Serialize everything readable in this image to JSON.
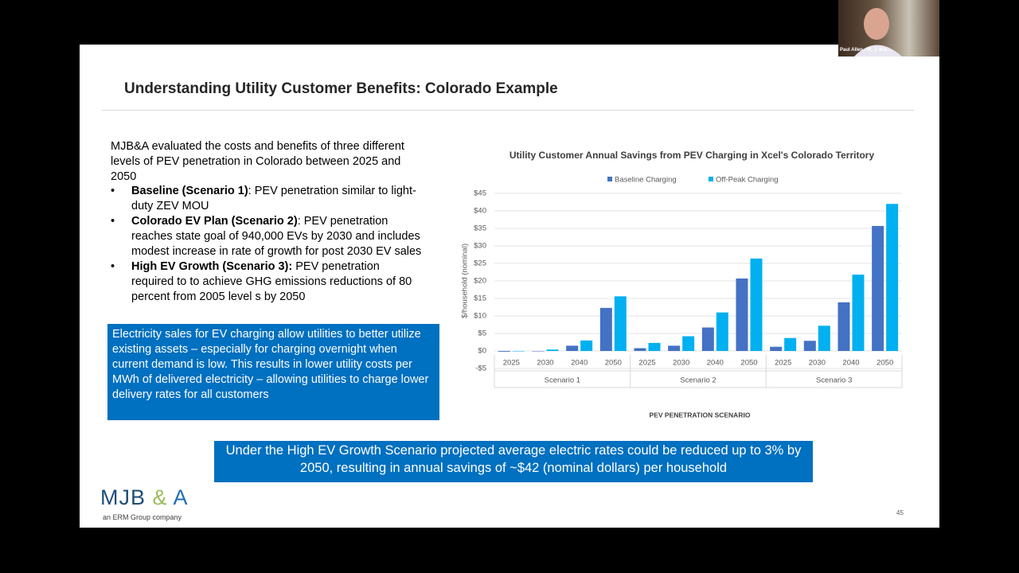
{
  "slide": {
    "title": "Understanding Utility Customer Benefits: Colorado Example",
    "intro": "MJB&A evaluated the costs and benefits of three different levels of PEV penetration in Colorado between 2025 and 2050",
    "bullets": [
      {
        "bold": "Baseline (Scenario 1)",
        "text": ": PEV penetration similar to light-duty ZEV MOU"
      },
      {
        "bold": "Colorado EV Plan (Scenario 2)",
        "text": ": PEV penetration reaches state goal of 940,000 EVs by 2030 and includes modest increase in rate of growth for post 2030 EV sales"
      },
      {
        "bold": "High EV Growth (Scenario 3):",
        "text": " PEV penetration required to to achieve GHG emissions reductions of 80 percent from 2005 level s by 2050"
      }
    ],
    "box_text": "Electricity sales for EV charging allow utilities to better utilize existing assets – especially for charging overnight when current demand is low.  This results in lower utility costs per MWh of delivered electricity – allowing utilities to charge lower delivery rates for all customers",
    "callout": "Under the High EV Growth Scenario projected average electric rates could be reduced up to 3% by 2050, resulting in annual savings of ~$42 (nominal dollars) per household",
    "logo": [
      "MJB",
      "&",
      "A"
    ],
    "tagline": "an ERM Group company",
    "page_number": "45",
    "video_name": "Paul Allen - M. J. Bra..."
  },
  "chart_data": {
    "type": "bar",
    "title": "Utility Customer Annual Savings from PEV Charging in Xcel's Colorado Territory",
    "y_label": "$/household (nominal)",
    "x_label": "PEV PENETRATION SCENARIO",
    "categories": [
      "2025",
      "2030",
      "2040",
      "2050",
      "2025",
      "2030",
      "2040",
      "2050",
      "2025",
      "2030",
      "2040",
      "2050"
    ],
    "groups": [
      "Scenario 1",
      "Scenario 2",
      "Scenario 3"
    ],
    "series": [
      {
        "name": "Baseline Charging",
        "color": "#4472c4",
        "values": [
          -0.2,
          0,
          1.5,
          12.3,
          0.8,
          1.5,
          6.7,
          20.7,
          1.2,
          2.9,
          13.9,
          35.7
        ]
      },
      {
        "name": "Off-Peak Charging",
        "color": "#00b0f0",
        "values": [
          0,
          0.4,
          3,
          15.6,
          2.3,
          4.2,
          11,
          26.4,
          3.7,
          7.2,
          21.8,
          42
        ]
      }
    ],
    "ylim": [
      -5,
      45
    ],
    "yticks": [
      {
        "value": -5,
        "label": "-$5"
      },
      {
        "value": 0,
        "label": "$0"
      },
      {
        "value": 5,
        "label": "$5"
      },
      {
        "value": 10,
        "label": "$10"
      },
      {
        "value": 15,
        "label": "$15"
      },
      {
        "value": 20,
        "label": "$20"
      },
      {
        "value": 25,
        "label": "$25"
      },
      {
        "value": 30,
        "label": "$30"
      },
      {
        "value": 35,
        "label": "$35"
      },
      {
        "value": 40,
        "label": "$40"
      },
      {
        "value": 45,
        "label": "$45"
      }
    ],
    "grid": true,
    "legend": "top"
  }
}
